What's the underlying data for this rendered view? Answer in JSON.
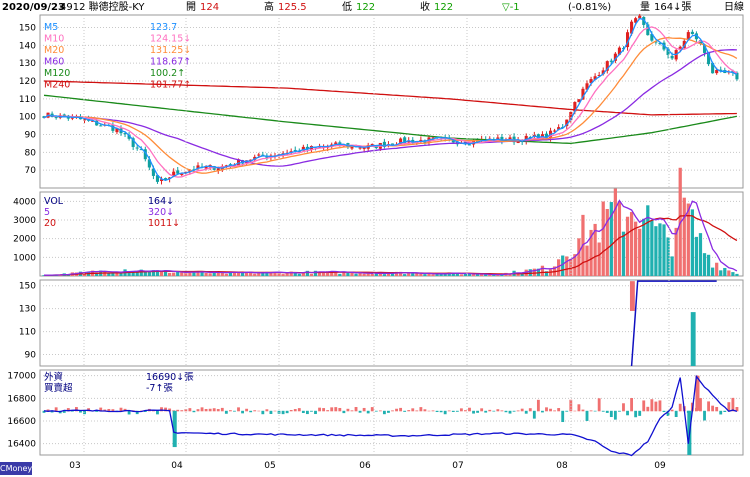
{
  "header": {
    "date": "2020/09/23",
    "stock": "4912 聯德控股-KY",
    "open_label": "開",
    "open": "124",
    "high_label": "高",
    "high": "125.5",
    "low_label": "低",
    "low": "122",
    "close_label": "收",
    "close": "122",
    "change": "▽-1",
    "change_pct": "(-0.81%)",
    "volume_label": "量",
    "volume": "164↓張",
    "period": "日線"
  },
  "brand": "CMoney",
  "colors": {
    "up": "#e02020",
    "down": "#10a0a0",
    "frame": "#999999",
    "grid": "#c8c8c8"
  },
  "price_panel": {
    "legend": [
      {
        "name": "M5",
        "value": "123.7",
        "color": "#1e90ff"
      },
      {
        "name": "M10",
        "value": "124.15↓",
        "color": "#ff70c0"
      },
      {
        "name": "M20",
        "value": "131.25↓",
        "color": "#ff8c3a"
      },
      {
        "name": "M60",
        "value": "118.67↑",
        "color": "#8a2be2"
      },
      {
        "name": "M120",
        "value": "100.2↑",
        "color": "#1a8a1a"
      },
      {
        "name": "M240",
        "value": "101.77↑",
        "color": "#d01010"
      }
    ],
    "y_ticks": [
      "150",
      "140",
      "130",
      "120",
      "110",
      "100",
      "90",
      "80",
      "70"
    ]
  },
  "volume_panel": {
    "legend": [
      {
        "name": "VOL",
        "value": "164↓",
        "color": "#000080"
      },
      {
        "name": "5",
        "value": "320↓",
        "color": "#8a2be2"
      },
      {
        "name": "20",
        "value": "1011↓",
        "color": "#d01010"
      }
    ],
    "y_ticks": [
      "4000",
      "3000",
      "2000",
      "1000"
    ]
  },
  "third_panel": {
    "y_ticks": [
      "150",
      "130",
      "110",
      "90"
    ]
  },
  "inst_panel": {
    "legend": [
      {
        "name": "外資",
        "value": "16690↓張",
        "color": "#000080"
      },
      {
        "name": "買賣超",
        "value": "-7↑張",
        "color": "#000080"
      }
    ],
    "y_ticks": [
      "17000",
      "16800",
      "16600",
      "16400"
    ]
  },
  "x_axis": {
    "ticks": [
      "03",
      "04",
      "05",
      "06",
      "07",
      "08",
      "09"
    ]
  },
  "chart_data": {
    "type": "candlestick",
    "x_months": [
      "03",
      "04",
      "05",
      "06",
      "07",
      "08",
      "09"
    ],
    "price_ylim": [
      60,
      157
    ],
    "ma_last_values": {
      "M5": 123.7,
      "M10": 124.15,
      "M20": 131.25,
      "M60": 118.67,
      "M120": 100.2,
      "M240": 101.77
    },
    "close_anchors": [
      [
        0,
        101
      ],
      [
        8,
        99
      ],
      [
        18,
        93
      ],
      [
        24,
        80
      ],
      [
        28,
        62
      ],
      [
        32,
        68
      ],
      [
        37,
        71
      ],
      [
        44,
        72
      ],
      [
        50,
        76
      ],
      [
        57,
        79
      ],
      [
        65,
        82
      ],
      [
        72,
        84
      ],
      [
        80,
        83
      ],
      [
        88,
        86
      ],
      [
        96,
        87
      ],
      [
        104,
        86
      ],
      [
        110,
        87
      ],
      [
        116,
        87
      ],
      [
        120,
        88
      ],
      [
        124,
        89
      ],
      [
        128,
        95
      ],
      [
        131,
        108
      ],
      [
        134,
        118
      ],
      [
        137,
        125
      ],
      [
        140,
        132
      ],
      [
        143,
        140
      ],
      [
        145,
        152
      ],
      [
        147,
        155
      ],
      [
        149,
        146
      ],
      [
        151,
        141
      ],
      [
        153,
        138
      ],
      [
        155,
        133
      ],
      [
        157,
        139
      ],
      [
        159,
        147
      ],
      [
        161,
        144
      ],
      [
        163,
        136
      ],
      [
        165,
        125
      ],
      [
        167,
        124
      ],
      [
        169,
        124
      ],
      [
        171,
        122
      ]
    ],
    "volume_ylim": [
      0,
      4500
    ],
    "volume_peaks": [
      [
        2,
        60
      ],
      [
        20,
        350
      ],
      [
        28,
        250
      ],
      [
        44,
        150
      ],
      [
        65,
        200
      ],
      [
        90,
        170
      ],
      [
        112,
        90
      ],
      [
        125,
        450
      ],
      [
        128,
        1300
      ],
      [
        131,
        1700
      ],
      [
        133,
        2300
      ],
      [
        136,
        2500
      ],
      [
        140,
        3300
      ],
      [
        145,
        3600
      ],
      [
        147,
        3700
      ],
      [
        151,
        2300
      ],
      [
        155,
        1900
      ],
      [
        157,
        4100
      ],
      [
        161,
        2300
      ],
      [
        163,
        1400
      ],
      [
        165,
        800
      ],
      [
        169,
        300
      ],
      [
        171,
        164
      ]
    ],
    "vol_ma5_last": 320,
    "vol_ma20_last": 1011,
    "third_ylim": [
      80,
      155
    ],
    "inst_ylim": [
      16300,
      17050
    ],
    "inst_last": 16690,
    "inst_anchors": [
      [
        0,
        16690
      ],
      [
        31,
        16690
      ],
      [
        32,
        16500
      ],
      [
        40,
        16490
      ],
      [
        60,
        16480
      ],
      [
        90,
        16470
      ],
      [
        112,
        16490
      ],
      [
        130,
        16480
      ],
      [
        136,
        16420
      ],
      [
        140,
        16330
      ],
      [
        145,
        16300
      ],
      [
        149,
        16420
      ],
      [
        152,
        16620
      ],
      [
        155,
        16720
      ],
      [
        157,
        16990
      ],
      [
        159,
        16400
      ],
      [
        161,
        17000
      ],
      [
        163,
        16900
      ],
      [
        166,
        16790
      ],
      [
        169,
        16690
      ],
      [
        171,
        16690
      ]
    ]
  }
}
